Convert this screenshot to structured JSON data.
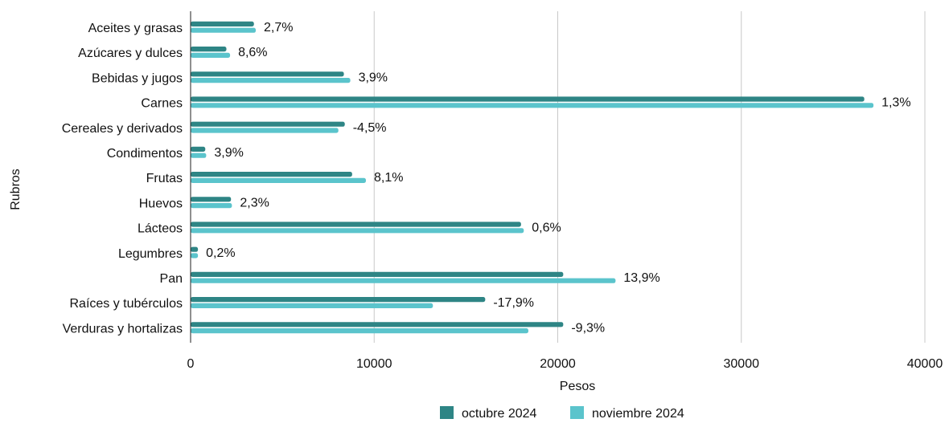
{
  "chart_data": {
    "type": "bar",
    "orientation": "horizontal",
    "title": "",
    "xlabel": "Pesos",
    "ylabel": "Rubros",
    "xlim": [
      0,
      40000
    ],
    "x_ticks": [
      "0",
      "10000",
      "20000",
      "30000",
      "40000"
    ],
    "grid": "vertical",
    "legend_position": "bottom",
    "categories": [
      "Aceites y grasas",
      "Azúcares y dulces",
      "Bebidas y jugos",
      "Carnes",
      "Cereales y derivados",
      "Condimentos",
      "Frutas",
      "Huevos",
      "Lácteos",
      "Legumbres",
      "Pan",
      "Raíces y tubérculos",
      "Verduras y hortalizas"
    ],
    "series": [
      {
        "name": "octubre 2024",
        "color": "#2e8585",
        "values": [
          3450,
          1950,
          8350,
          36700,
          8400,
          800,
          8800,
          2200,
          18000,
          400,
          20300,
          16050,
          20300
        ]
      },
      {
        "name": "noviembre 2024",
        "color": "#5bc4cc",
        "values": [
          3550,
          2150,
          8700,
          37200,
          8050,
          850,
          9550,
          2250,
          18150,
          400,
          23150,
          13200,
          18400
        ]
      }
    ],
    "data_labels": [
      "2,7%",
      "8,6%",
      "3,9%",
      "1,3%",
      "-4,5%",
      "3,9%",
      "8,1%",
      "2,3%",
      "0,6%",
      "0,2%",
      "13,9%",
      "-17,9%",
      "-9,3%"
    ]
  }
}
